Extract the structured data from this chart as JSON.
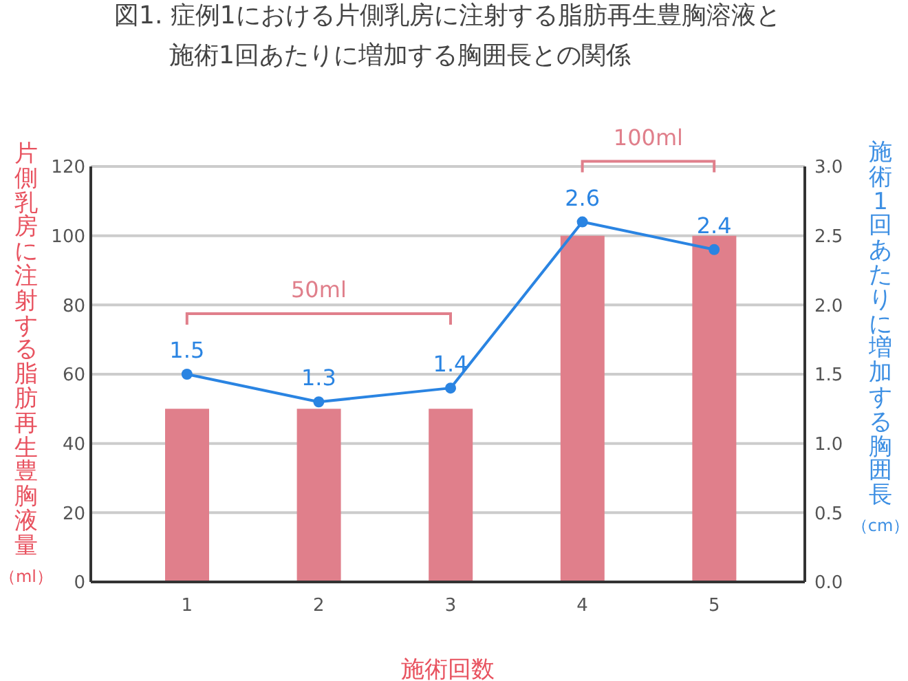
{
  "chart_data": {
    "type": "bar",
    "title": "図1. 症例1における片側乳房に注射する脂肪再生豊胸溶液と施術1回あたりに増加する胸囲長との関係",
    "xlabel": "施術回数",
    "ylabel": "片側乳房に注射する脂肪再生豊胸液量（ml）",
    "y2label": "施術1回あたりに増加する胸囲長（cm）",
    "categories": [
      "1",
      "2",
      "3",
      "4",
      "5"
    ],
    "series": [
      {
        "color": "#e07f8b",
        "values": [
          50,
          50,
          50,
          100,
          100
        ]
      },
      {
        "type": "line",
        "axis": "y2",
        "color": "#2a84e2",
        "values": [
          1.5,
          1.3,
          1.4,
          2.6,
          2.4
        ],
        "value_labels": [
          "1.5",
          "1.3",
          "1.4",
          "2.6",
          "2.4"
        ]
      }
    ],
    "ylim": [
      0,
      120
    ],
    "yticks": [
      0,
      20,
      40,
      60,
      80,
      100,
      120
    ],
    "y2lim": [
      0,
      3
    ],
    "y2ticks": [
      {
        "value": 0,
        "label": "0.0"
      },
      {
        "value": 0.5,
        "label": "0.5"
      },
      {
        "value": 1,
        "label": "1.0"
      },
      {
        "value": 1.5,
        "label": "1.5"
      },
      {
        "value": 2,
        "label": "2.0"
      },
      {
        "value": 2.5,
        "label": "2.5"
      },
      {
        "value": 3,
        "label": "3.0"
      }
    ],
    "grid": "y",
    "marker": "circle",
    "line_style": "solid",
    "annotations": [
      "50ml",
      "100ml"
    ]
  }
}
